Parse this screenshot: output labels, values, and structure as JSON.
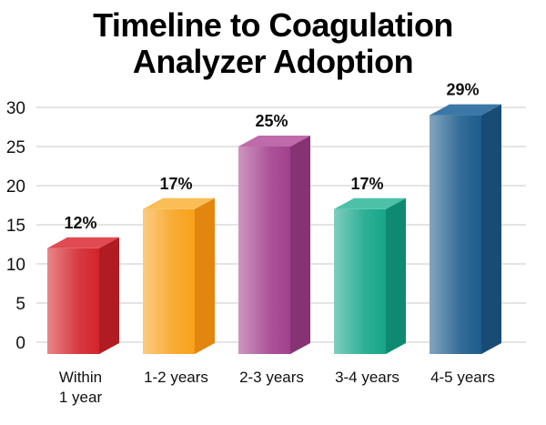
{
  "chart_data": {
    "type": "bar",
    "title_line1": "Timeline to Coagulation",
    "title_line2": "Analyzer Adoption",
    "categories": [
      "Within\n1 year",
      "1-2 years",
      "2-3 years",
      "3-4 years",
      "4-5 years"
    ],
    "values": [
      12,
      17,
      25,
      17,
      29
    ],
    "value_labels": [
      "12%",
      "17%",
      "25%",
      "17%",
      "29%"
    ],
    "ylim": [
      0,
      30
    ],
    "yticks": [
      0,
      5,
      10,
      15,
      20,
      25,
      30
    ],
    "grid": true,
    "colors": [
      "#d3242c",
      "#f7a21b",
      "#a3408e",
      "#16a68a",
      "#1d5c8c"
    ],
    "side_colors": [
      "#b01c22",
      "#e2860f",
      "#863374",
      "#0e8a72",
      "#184c75"
    ],
    "top_colors": [
      "#e04a50",
      "#fbbd55",
      "#bf6aab",
      "#4cc1a8",
      "#3b78a8"
    ]
  }
}
